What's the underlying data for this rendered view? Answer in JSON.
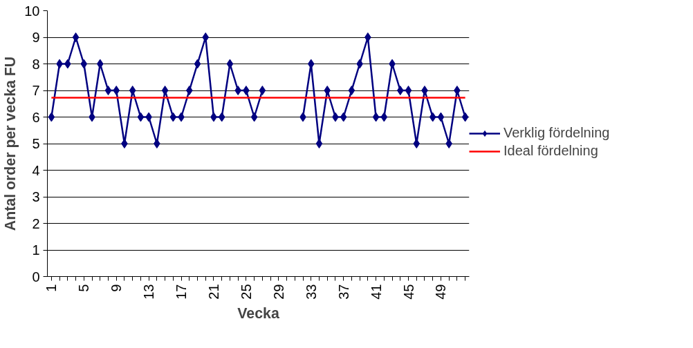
{
  "chart_data": {
    "type": "line",
    "xlabel": "Vecka",
    "ylabel": "Antal order per vecka FU",
    "categories": [
      "1",
      null,
      null,
      null,
      "5",
      null,
      null,
      null,
      "9",
      null,
      null,
      null,
      "13",
      null,
      null,
      null,
      "17",
      null,
      null,
      null,
      "21",
      null,
      null,
      null,
      "25",
      null,
      null,
      null,
      "29",
      null,
      null,
      null,
      "33",
      null,
      null,
      null,
      "37",
      null,
      null,
      null,
      "41",
      null,
      null,
      null,
      "45",
      null,
      null,
      null,
      "49",
      null,
      null,
      null
    ],
    "series": [
      {
        "name": "Verklig fördelning",
        "color": "#000080",
        "marker": "diamond",
        "values": [
          6,
          8,
          8,
          9,
          8,
          6,
          8,
          7,
          7,
          5,
          7,
          6,
          6,
          5,
          7,
          6,
          6,
          7,
          8,
          9,
          6,
          6,
          8,
          7,
          7,
          6,
          7,
          null,
          null,
          null,
          null,
          6,
          8,
          5,
          7,
          6,
          6,
          7,
          8,
          9,
          6,
          6,
          8,
          7,
          7,
          5,
          7,
          6,
          6,
          5,
          7,
          6
        ]
      },
      {
        "name": "Ideal fördelning",
        "color": "#ff0000",
        "marker": "none",
        "values": [
          6.73,
          6.73,
          6.73,
          6.73,
          6.73,
          6.73,
          6.73,
          6.73,
          6.73,
          6.73,
          6.73,
          6.73,
          6.73,
          6.73,
          6.73,
          6.73,
          6.73,
          6.73,
          6.73,
          6.73,
          6.73,
          6.73,
          6.73,
          6.73,
          6.73,
          6.73,
          6.73,
          6.73,
          6.73,
          6.73,
          6.73,
          6.73,
          6.73,
          6.73,
          6.73,
          6.73,
          6.73,
          6.73,
          6.73,
          6.73,
          6.73,
          6.73,
          6.73,
          6.73,
          6.73,
          6.73,
          6.73,
          6.73,
          6.73,
          6.73,
          6.73,
          6.73
        ]
      }
    ],
    "ylim": [
      0,
      10
    ],
    "yticks": [
      0,
      1,
      2,
      3,
      4,
      5,
      6,
      7,
      8,
      9,
      10
    ],
    "grid": "y",
    "legend": "right"
  }
}
